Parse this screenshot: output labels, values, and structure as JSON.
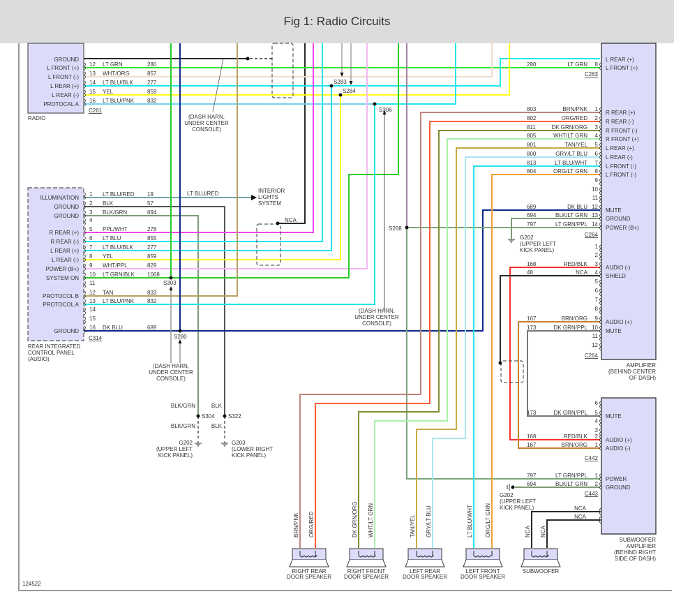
{
  "title": "Fig 1: Radio Circuits",
  "figure_number": "124522",
  "wire_colors": {
    "blk": "#2a2a2a",
    "ltgrn": "#33e033",
    "whtorg": "#f3dccb",
    "ltblu": "#22e6ef",
    "yel": "#ffff22",
    "magenta": "#ee44ee",
    "pink": "#f2b8f2",
    "grn": "#28cc28",
    "tan": "#b7a262",
    "dkblu": "#0b2a8c",
    "blkgrn": "#7e9a74",
    "gray": "#555555",
    "brn": "#9a6a30",
    "org": "#ff7a40",
    "dkgrn": "#2a9a2a",
    "ltgrn2": "#a8f0a8",
    "tanyel": "#c9aa44",
    "grylt": "#a8e6f0",
    "orglt": "#f2a030",
    "red": "#ff3030",
    "brnorg": "#c88030",
    "module_fill": "#dcdcfa",
    "module_stroke": "#555555"
  },
  "radio": {
    "name": "RADIO",
    "connector": "C261",
    "ground_label": "GROUND",
    "pins": [
      {
        "label": "L FRONT (+)",
        "pin": "12",
        "color": "LT GRN",
        "circuit": "280"
      },
      {
        "label": "L FRONT (-)",
        "pin": "13",
        "color": "WHT/ORG",
        "circuit": "857"
      },
      {
        "label": "L REAR (+)",
        "pin": "14",
        "color": "LT BLU/BLK",
        "circuit": "277"
      },
      {
        "label": "L REAR (-)",
        "pin": "15",
        "color": "YEL",
        "circuit": "859"
      },
      {
        "label": "PROTOCAL A",
        "pin": "16",
        "color": "LT BLU/PNK",
        "circuit": "832"
      }
    ]
  },
  "rear_panel": {
    "name": [
      "REAR INTEGRATED",
      "CONTROL PANEL",
      "(AUDIO)"
    ],
    "connector": "C314",
    "pins": [
      {
        "label": "ILLUMINATION",
        "pin": "1",
        "color": "LT BLU/RED",
        "circuit": "19"
      },
      {
        "label": "GROUND",
        "pin": "2",
        "color": "BLK",
        "circuit": "57"
      },
      {
        "label": "GROUND",
        "pin": "3",
        "color": "BLK/GRN",
        "circuit": "694"
      },
      {
        "label": "",
        "pin": "4",
        "color": "",
        "circuit": ""
      },
      {
        "label": "R REAR (+)",
        "pin": "5",
        "color": "PPL/WHT",
        "circuit": "278"
      },
      {
        "label": "R REAR (-)",
        "pin": "6",
        "color": "LT BLU",
        "circuit": "855"
      },
      {
        "label": "L REAR (+)",
        "pin": "7",
        "color": "LT BLU/BLK",
        "circuit": "277"
      },
      {
        "label": "L REAR (-)",
        "pin": "8",
        "color": "YEL",
        "circuit": "859"
      },
      {
        "label": "POWER (B+)",
        "pin": "9",
        "color": "WHT/PPL",
        "circuit": "829"
      },
      {
        "label": "SYSTEM ON",
        "pin": "10",
        "color": "LT GRN/BLK",
        "circuit": "1068"
      },
      {
        "label": "",
        "pin": "11",
        "color": "",
        "circuit": ""
      },
      {
        "label": "PROTOCOL B",
        "pin": "12",
        "color": "TAN",
        "circuit": "833"
      },
      {
        "label": "PROTOCOL A",
        "pin": "13",
        "color": "LT BLU/PNK",
        "circuit": "832"
      },
      {
        "label": "",
        "pin": "14",
        "color": "",
        "circuit": ""
      },
      {
        "label": "",
        "pin": "15",
        "color": "",
        "circuit": ""
      },
      {
        "label": "GROUND",
        "pin": "16",
        "color": "DK BLU",
        "circuit": "689"
      }
    ],
    "illumination_wire_label": "LT BLU/RED"
  },
  "interior_lights": [
    "INTERIOR",
    "LIGHTS",
    "SYSTEM"
  ],
  "amplifier": {
    "name": [
      "AMPLIFIER",
      "(BEHIND CENTER",
      "OF DASH)"
    ],
    "c263": {
      "connector": "C263",
      "top_label": "L REAR (+)",
      "pins": [
        {
          "label": "L FRONT (+)",
          "pin": "8",
          "color": "LT GRN",
          "circuit": "280"
        }
      ]
    },
    "c264a": {
      "connector": "C264",
      "pins": [
        {
          "label": "R REAR (+)",
          "pin": "1",
          "color": "BRN/PNK",
          "circuit": "803"
        },
        {
          "label": "R REAR (-)",
          "pin": "2",
          "color": "ORG/RED",
          "circuit": "802"
        },
        {
          "label": "R FRONT (-)",
          "pin": "3",
          "color": "DK GRN/ORG",
          "circuit": "811"
        },
        {
          "label": "R FRONT (+)",
          "pin": "4",
          "color": "WHT/LT GRN",
          "circuit": "805"
        },
        {
          "label": "L REAR (+)",
          "pin": "5",
          "color": "TAN/YEL",
          "circuit": "801"
        },
        {
          "label": "L REAR (-)",
          "pin": "6",
          "color": "GRY/LT BLU",
          "circuit": "800"
        },
        {
          "label": "L FRONT (-)",
          "pin": "7",
          "color": "LT BLU/WHT",
          "circuit": "813"
        },
        {
          "label": "L FRONT (-)",
          "pin": "8",
          "color": "ORG/LT GRN",
          "circuit": "804"
        },
        {
          "label": "",
          "pin": "9",
          "color": "",
          "circuit": ""
        },
        {
          "label": "",
          "pin": "10",
          "color": "",
          "circuit": ""
        },
        {
          "label": "",
          "pin": "11",
          "color": "",
          "circuit": ""
        },
        {
          "label": "MUTE",
          "pin": "12",
          "color": "DK BLU",
          "circuit": "689"
        },
        {
          "label": "GROUND",
          "pin": "13",
          "color": "BLK/LT GRN",
          "circuit": "694"
        },
        {
          "label": "POWER (B+)",
          "pin": "14",
          "color": "LT GRN/PPL",
          "circuit": "797"
        }
      ]
    },
    "c264b": {
      "connector": "C264",
      "pins": [
        {
          "label": "",
          "pin": "1",
          "color": "",
          "circuit": ""
        },
        {
          "label": "",
          "pin": "2",
          "color": "",
          "circuit": ""
        },
        {
          "label": "AUDIO (-)",
          "pin": "3",
          "color": "RED/BLK",
          "circuit": "168"
        },
        {
          "label": "SHIELD",
          "pin": "4",
          "color": "NCA",
          "circuit": "48"
        },
        {
          "label": "",
          "pin": "5",
          "color": "",
          "circuit": ""
        },
        {
          "label": "",
          "pin": "6",
          "color": "",
          "circuit": ""
        },
        {
          "label": "",
          "pin": "7",
          "color": "",
          "circuit": ""
        },
        {
          "label": "",
          "pin": "8",
          "color": "",
          "circuit": ""
        },
        {
          "label": "AUDIO (+)",
          "pin": "9",
          "color": "BRN/ORG",
          "circuit": "167"
        },
        {
          "label": "MUTE",
          "pin": "10",
          "color": "DK GRN/PPL",
          "circuit": "173"
        },
        {
          "label": "",
          "pin": "11",
          "color": "",
          "circuit": ""
        },
        {
          "label": "",
          "pin": "12",
          "color": "",
          "circuit": ""
        }
      ]
    }
  },
  "subwoofer_amp": {
    "name": [
      "SUBWOOFER",
      "AMPLIFIER",
      "(BEHIND RIGHT",
      "SIDE OF DASH)"
    ],
    "c442": {
      "connector": "C442",
      "pins": [
        {
          "label": "",
          "pin": "6",
          "color": "",
          "circuit": ""
        },
        {
          "label": "MUTE",
          "pin": "5",
          "color": "DK GRN/PPL",
          "circuit": "173"
        },
        {
          "label": "",
          "pin": "4",
          "color": "",
          "circuit": ""
        },
        {
          "label": "",
          "pin": "3",
          "color": "",
          "circuit": ""
        },
        {
          "label": "AUDIO (+)",
          "pin": "2",
          "color": "RED/BLK",
          "circuit": "168"
        },
        {
          "label": "AUDIO (-)",
          "pin": "1",
          "color": "BRN/ORG",
          "circuit": "167"
        }
      ]
    },
    "c443": {
      "connector": "C443",
      "pins": [
        {
          "label": "POWER",
          "pin": "1",
          "color": "LT GRN/PPL",
          "circuit": "797"
        },
        {
          "label": "GROUND",
          "pin": "2",
          "color": "BLK/LT GRN",
          "circuit": "694"
        }
      ]
    },
    "nca_labels": [
      "NCA",
      "NCA"
    ]
  },
  "splices": {
    "s283": "S283",
    "s284": "S284",
    "s306": "S306",
    "s268": "S268",
    "s303": "S303",
    "s280": "S280",
    "s304": "S304",
    "s322": "S322"
  },
  "grounds": {
    "g202_left": {
      "id": "G202",
      "loc": [
        "(UPPER LEFT",
        "KICK PANEL)"
      ],
      "wire_top": "BLK/GRN",
      "wire_bottom": "BLK/GRN"
    },
    "g203": {
      "id": "G203",
      "loc": [
        "(LOWER RIGHT",
        "KICK PANEL)"
      ],
      "wire_top": "BLK",
      "wire_bottom": "BLK"
    },
    "g202_amp": {
      "id": "G202",
      "loc": [
        "(UPPER LEFT",
        "KICK PANEL)"
      ]
    },
    "g202_sub": {
      "id": "G202",
      "loc": [
        "(UPPER LEFT",
        "KICK PANEL)"
      ]
    }
  },
  "notes": {
    "dash_harn": [
      "(DASH HARN,",
      "UNDER CENTER",
      "CONSOLE)"
    ],
    "nca": "NCA"
  },
  "speakers": [
    {
      "name": [
        "RIGHT REAR",
        "DOOR SPEAKER"
      ],
      "wires": [
        "BRN/PNK",
        "ORG/RED"
      ]
    },
    {
      "name": [
        "RIGHT FRONT",
        "DOOR SPEAKER"
      ],
      "wires": [
        "DK GRN/ORG",
        "WHT/LT GRN"
      ]
    },
    {
      "name": [
        "LEFT REAR",
        "DOOR SPEAKER"
      ],
      "wires": [
        "TAN/YEL",
        "GRY/LT BLU"
      ]
    },
    {
      "name": [
        "LEFT FRONT",
        "DOOR SPEAKER"
      ],
      "wires": [
        "LT BLU/WHT",
        "ORG/LT GRN"
      ]
    },
    {
      "name": [
        "SUBWOOFER"
      ],
      "wires": [
        "NCA",
        "NCA"
      ]
    }
  ]
}
